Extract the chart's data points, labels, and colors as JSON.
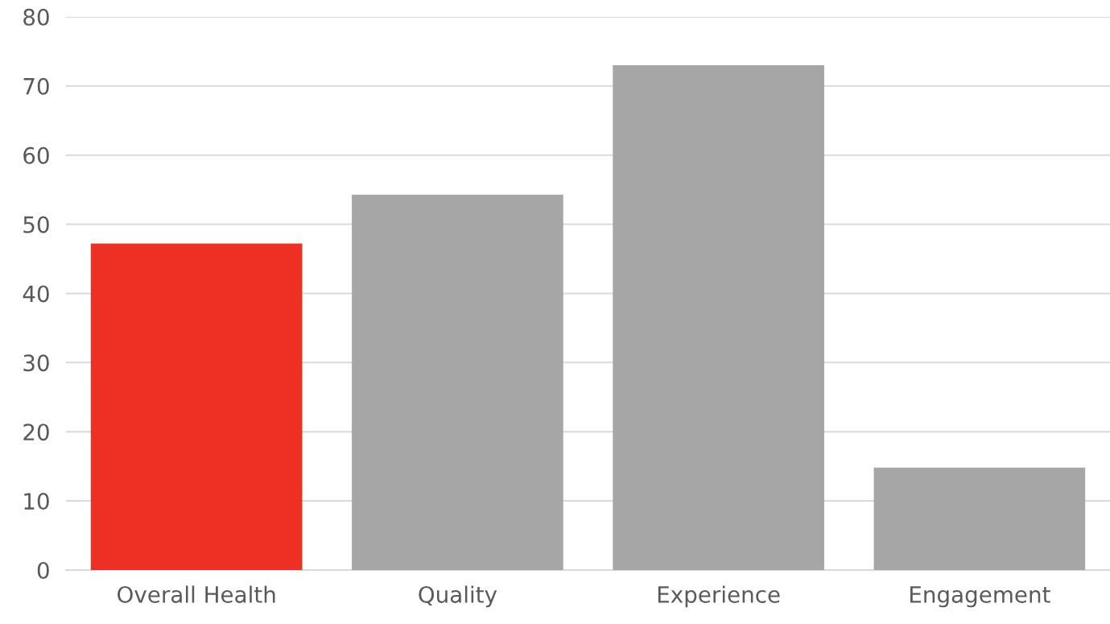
{
  "chart_data": {
    "type": "bar",
    "categories": [
      "Overall Health",
      "Quality",
      "Experience",
      "Engagement"
    ],
    "values": [
      47.2,
      54.3,
      73.0,
      14.8
    ],
    "colors": [
      "#ee2f24",
      "#a6a6a6",
      "#a6a6a6",
      "#a6a6a6"
    ],
    "ylim": [
      0,
      80
    ],
    "yticks": [
      0,
      10,
      20,
      30,
      40,
      50,
      60,
      70,
      80
    ],
    "grid": "y",
    "legend": false
  }
}
